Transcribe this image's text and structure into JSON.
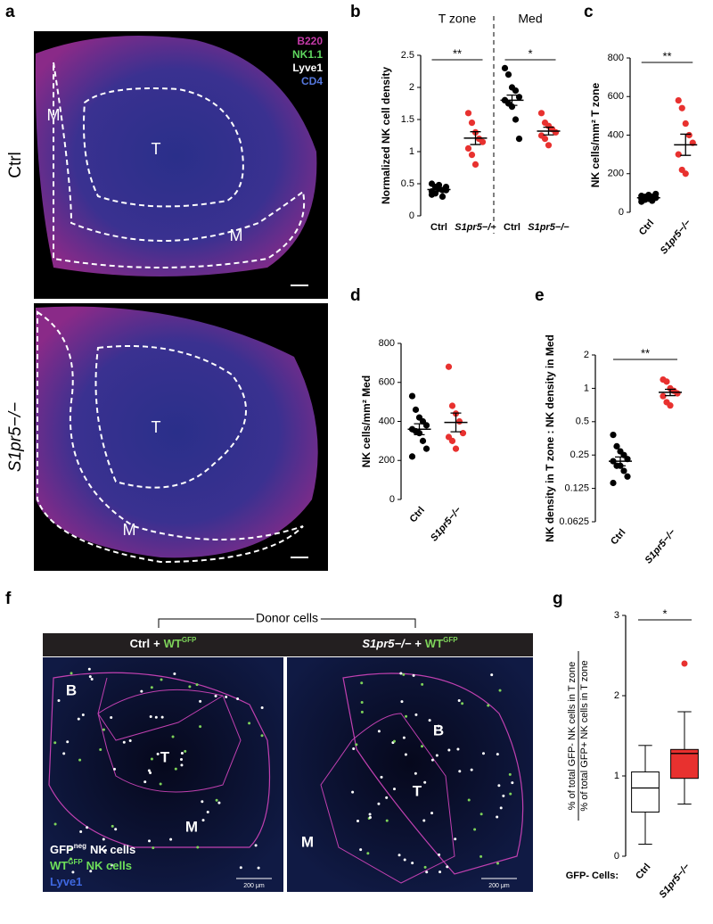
{
  "panel_labels": [
    "a",
    "b",
    "c",
    "d",
    "e",
    "f",
    "g"
  ],
  "panel_a": {
    "legend": [
      {
        "text": "B220",
        "color": "#c43aa8"
      },
      {
        "text": "NK1.1",
        "color": "#5fd65f"
      },
      {
        "text": "Lyve1",
        "color": "#ffffff"
      },
      {
        "text": "CD4",
        "color": "#5577dd"
      }
    ],
    "rows": [
      "Ctrl",
      "S1pr5−/−"
    ],
    "top_labels": [
      "M",
      "T",
      "M"
    ],
    "bottom_labels": [
      "T",
      "M"
    ]
  },
  "chart_data": [
    {
      "type": "dot",
      "ylabel": "Normalized NK cell density",
      "group_titles": [
        "T zone",
        "Med"
      ],
      "categories": [
        "Ctrl",
        "S1pr5−/−",
        "Ctrl",
        "S1pr5−/−"
      ],
      "groups": [
        {
          "color": "#000000",
          "values": [
            0.5,
            0.45,
            0.42,
            0.4,
            0.45,
            0.38,
            0.35,
            0.48,
            0.3,
            0.4,
            0.33
          ],
          "mean": 0.41,
          "sem": 0.03
        },
        {
          "color": "#e8312f",
          "values": [
            1.6,
            1.45,
            1.3,
            1.2,
            1.15,
            1.05,
            0.95,
            0.8
          ],
          "mean": 1.21,
          "sem": 0.1
        },
        {
          "color": "#000000",
          "values": [
            2.3,
            2.2,
            2.0,
            1.95,
            1.85,
            1.8,
            1.75,
            1.7,
            1.5,
            1.2,
            1.8
          ],
          "mean": 1.8,
          "sem": 0.08
        },
        {
          "color": "#e8312f",
          "values": [
            1.6,
            1.45,
            1.4,
            1.35,
            1.3,
            1.25,
            1.2,
            1.1
          ],
          "mean": 1.32,
          "sem": 0.06
        }
      ],
      "ylim": [
        0,
        2.5
      ],
      "yticks": [
        0,
        0.5,
        1,
        1.5,
        2,
        2.5
      ],
      "significance": [
        "**",
        "*"
      ]
    },
    {
      "type": "dot",
      "ylabel": "NK cells/mm² T zone",
      "categories": [
        "Ctrl",
        "S1pr5−/−"
      ],
      "groups": [
        {
          "color": "#000000",
          "values": [
            70,
            80,
            90,
            60,
            75,
            85,
            65,
            70,
            80,
            95,
            55
          ],
          "mean": 75,
          "sem": 5
        },
        {
          "color": "#e8312f",
          "values": [
            580,
            540,
            460,
            400,
            360,
            300,
            220,
            200
          ],
          "mean": 350,
          "sem": 55
        }
      ],
      "ylim": [
        0,
        800
      ],
      "yticks": [
        0,
        200,
        400,
        600,
        800
      ],
      "significance": "**"
    },
    {
      "type": "dot",
      "ylabel": "NK cells/mm² Med",
      "categories": [
        "Ctrl",
        "S1pr5−/−"
      ],
      "groups": [
        {
          "color": "#000000",
          "values": [
            530,
            460,
            420,
            400,
            380,
            360,
            350,
            340,
            300,
            260,
            220
          ],
          "mean": 360,
          "sem": 28
        },
        {
          "color": "#e8312f",
          "values": [
            680,
            480,
            440,
            400,
            340,
            320,
            300,
            260
          ],
          "mean": 395,
          "sem": 48
        }
      ],
      "ylim": [
        0,
        800
      ],
      "yticks": [
        0,
        200,
        400,
        600,
        800
      ]
    },
    {
      "type": "dot",
      "ylabel": "NK density in T zone : NK density in Med",
      "categories": [
        "Ctrl",
        "S1pr5−/−"
      ],
      "log": true,
      "groups": [
        {
          "color": "#000000",
          "values": [
            0.38,
            0.3,
            0.27,
            0.25,
            0.23,
            0.22,
            0.2,
            0.2,
            0.18,
            0.16,
            0.14
          ],
          "mean": 0.22,
          "sem": 0.02
        },
        {
          "color": "#e8312f",
          "values": [
            1.2,
            1.15,
            1.0,
            0.95,
            0.9,
            0.85,
            0.75,
            0.7
          ],
          "mean": 0.92,
          "sem": 0.06
        }
      ],
      "ylim": [
        0.0625,
        2
      ],
      "yticks": [
        0.0625,
        0.125,
        0.25,
        0.5,
        1,
        2
      ],
      "significance": "**"
    },
    {
      "type": "box",
      "ylabel": [
        "% of total GFP- NK cells in T zone",
        "% of total GFP+ NK cells in T zone"
      ],
      "x_title": "GFP- Cells:",
      "categories": [
        "Ctrl",
        "S1pr5−/−"
      ],
      "boxes": [
        {
          "color": "#ffffff",
          "min": 0.15,
          "q1": 0.55,
          "median": 0.85,
          "q3": 1.05,
          "max": 1.38,
          "outliers": []
        },
        {
          "color": "#e8312f",
          "min": 0.65,
          "q1": 0.97,
          "median": 1.28,
          "q3": 1.33,
          "max": 1.8,
          "outliers": [
            2.4
          ]
        }
      ],
      "ylim": [
        0,
        3
      ],
      "yticks": [
        0,
        1,
        2,
        3
      ],
      "significance": "*"
    }
  ],
  "panel_f": {
    "bracket": "Donor cells",
    "headers": [
      {
        "genotype": "Ctrl",
        "plus": "+",
        "donor": "WT",
        "sup": "GFP"
      },
      {
        "genotype": "S1pr5−/−",
        "plus": "+",
        "donor": "WT",
        "sup": "GFP"
      }
    ],
    "left_labels": [
      "B",
      "T",
      "M"
    ],
    "right_labels": [
      "B",
      "T",
      "M"
    ],
    "legend": [
      {
        "text": "GFP",
        "sup": "neg",
        "rest": "NK cells",
        "color": "#ffffff"
      },
      {
        "text": "WT",
        "sup": "GFP",
        "rest": "NK cells",
        "color": "#6ee05a"
      },
      {
        "text": "Lyve1",
        "color": "#3f68e0"
      }
    ],
    "scale": "200 μm"
  }
}
